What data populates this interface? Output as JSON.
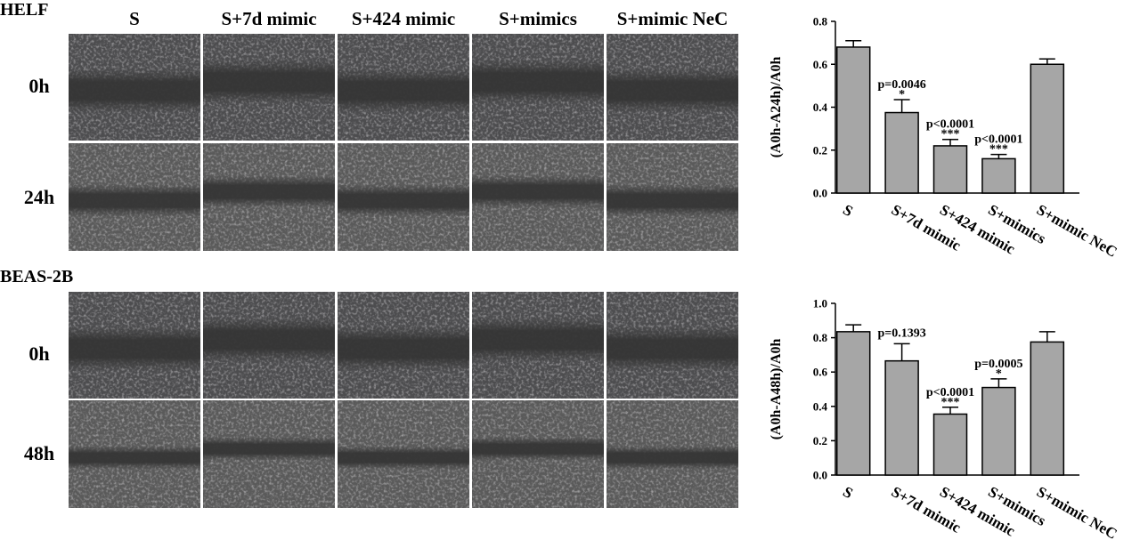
{
  "figure": {
    "headers": [
      "S",
      "S+7d mimic",
      "S+424 mimic",
      "S+mimics",
      "S+mimic NeC"
    ],
    "panels": [
      {
        "label": "HELF",
        "rows": [
          "0h",
          "24h"
        ]
      },
      {
        "label": "BEAS-2B",
        "rows": [
          "0h",
          "48h"
        ]
      }
    ]
  },
  "chart_data": [
    {
      "type": "bar",
      "y_label": "(A0h-A24h)/A0h",
      "categories": [
        "S",
        "S+7d mimic",
        "S+424 mimic",
        "S+mimics",
        "S+mimic NeC"
      ],
      "values": [
        0.68,
        0.375,
        0.22,
        0.16,
        0.6
      ],
      "errors": [
        0.03,
        0.06,
        0.03,
        0.02,
        0.025
      ],
      "p_values": [
        null,
        "p=0.0046",
        "p<0.0001",
        "p<0.0001",
        null
      ],
      "stars": [
        null,
        "*",
        "***",
        "***",
        null
      ],
      "color": "#a6a6a6",
      "ylim": [
        0,
        0.8
      ],
      "yticks": [
        {
          "value": 0,
          "label": "0.0"
        },
        0.2,
        0.4,
        0.6,
        0.8
      ]
    },
    {
      "type": "bar",
      "y_label": "(A0h-A48h)/A0h",
      "categories": [
        "S",
        "S+7d mimic",
        "S+424 mimic",
        "S+mimics",
        "S+mimic NeC"
      ],
      "values": [
        0.835,
        0.665,
        0.355,
        0.51,
        0.775
      ],
      "errors": [
        0.04,
        0.1,
        0.04,
        0.05,
        0.06
      ],
      "p_values": [
        null,
        "p=0.1393",
        "p<0.0001",
        "p=0.0005",
        null
      ],
      "stars": [
        null,
        null,
        "***",
        "*",
        null
      ],
      "color": "#a6a6a6",
      "ylim": [
        0,
        1
      ],
      "yticks": [
        {
          "value": 0,
          "label": "0.0"
        },
        0.2,
        0.4,
        0.6,
        0.8,
        {
          "value": 1,
          "label": "1.0"
        }
      ]
    }
  ]
}
